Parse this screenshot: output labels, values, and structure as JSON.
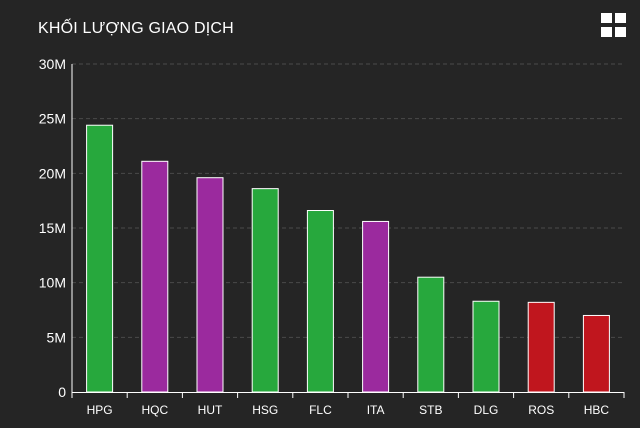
{
  "title": "KHỐI LƯỢNG GIAO DỊCH",
  "menu_icon": "grid-menu-icon",
  "colors": {
    "background": "#252525",
    "up": "#27a83d",
    "ceiling": "#9b2a9e",
    "down": "#c0161e",
    "grid": "#4a4a4a",
    "axis": "#ffffff"
  },
  "chart_data": {
    "type": "bar",
    "title": "KHỐI LƯỢNG GIAO DỊCH",
    "categories": [
      "HPG",
      "HQC",
      "HUT",
      "HSG",
      "FLC",
      "ITA",
      "STB",
      "DLG",
      "ROS",
      "HBC"
    ],
    "values": [
      24400000,
      21100000,
      19600000,
      18600000,
      16600000,
      15600000,
      10500000,
      8300000,
      8200000,
      7000000
    ],
    "bar_colors": [
      "up",
      "ceiling",
      "ceiling",
      "up",
      "up",
      "ceiling",
      "up",
      "up",
      "down",
      "down"
    ],
    "ylim": [
      0,
      30000000
    ],
    "yticks": [
      0,
      5000000,
      10000000,
      15000000,
      20000000,
      25000000,
      30000000
    ],
    "ytick_labels": [
      "0",
      "5M",
      "10M",
      "15M",
      "20M",
      "25M",
      "30M"
    ],
    "grid": "horizontal dashed",
    "legend": "none"
  }
}
